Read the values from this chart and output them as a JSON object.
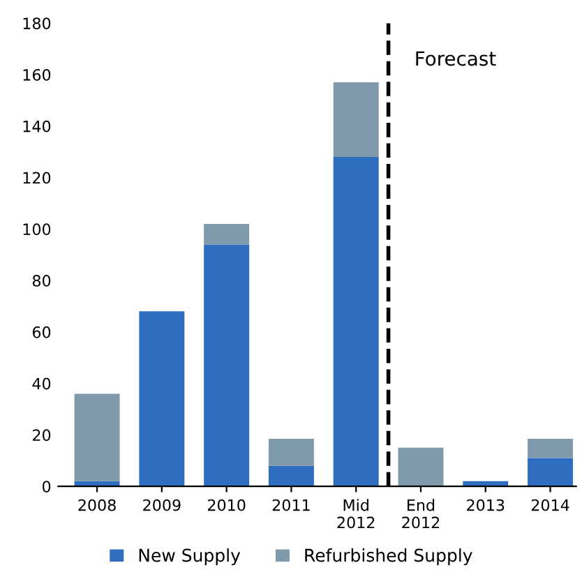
{
  "chart_data": {
    "type": "bar",
    "stacked": true,
    "categories": [
      "2008",
      "2009",
      "2010",
      "2011",
      "Mid\n2012",
      "End\n2012",
      "2013",
      "2014"
    ],
    "series": [
      {
        "name": "New Supply",
        "color": "#2e6dbf",
        "values": [
          2,
          68,
          94,
          8,
          128,
          0,
          2,
          11
        ]
      },
      {
        "name": "Refurbished Supply",
        "color": "#7f9aab",
        "values": [
          34,
          0,
          8,
          10.5,
          29,
          15,
          0,
          7.5
        ]
      }
    ],
    "ylim": [
      0,
      180
    ],
    "yticks": [
      0,
      20,
      40,
      60,
      80,
      100,
      120,
      140,
      160,
      180
    ],
    "annotations": [
      "Forecast"
    ],
    "grid": false,
    "legend": "bottom"
  }
}
